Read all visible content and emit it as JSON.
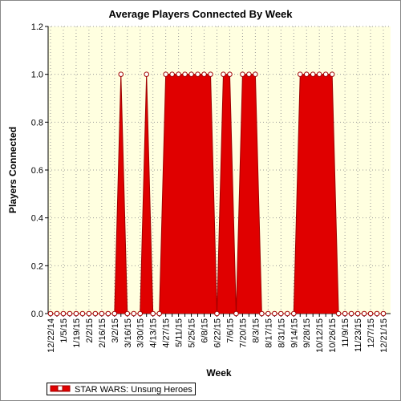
{
  "chart_data": {
    "type": "area",
    "title": "Average Players Connected By Week",
    "x_label": "Week",
    "y_label": "Players Connected",
    "categories": [
      "12/22/14",
      null,
      "1/5/15",
      null,
      "1/19/15",
      null,
      "2/2/15",
      null,
      "2/16/15",
      null,
      "3/2/15",
      null,
      "3/16/15",
      null,
      "3/30/15",
      null,
      "4/13/15",
      null,
      "4/27/15",
      null,
      "5/11/15",
      null,
      "5/25/15",
      null,
      "6/8/15",
      null,
      "6/22/15",
      null,
      "7/6/15",
      null,
      "7/20/15",
      null,
      "8/3/15",
      null,
      "8/17/15",
      null,
      "8/31/15",
      null,
      "9/14/15",
      null,
      "9/28/15",
      null,
      "10/12/15",
      null,
      "10/26/15",
      null,
      "11/9/15",
      null,
      "11/23/15",
      null,
      "12/7/15",
      null,
      "12/21/15"
    ],
    "series": [
      {
        "name": "STAR WARS: Unsung Heroes",
        "color": "#e00000",
        "line_color": "#a00000",
        "values": [
          0,
          0,
          0,
          0,
          0,
          0,
          0,
          0,
          0,
          0,
          0,
          1,
          0,
          0,
          0,
          1,
          0,
          0,
          1,
          1,
          1,
          1,
          1,
          1,
          1,
          1,
          0,
          1,
          1,
          0,
          1,
          1,
          1,
          0,
          0,
          0,
          0,
          0,
          0,
          1,
          1,
          1,
          1,
          1,
          1,
          0,
          0,
          0,
          0,
          0,
          0,
          0,
          0
        ]
      }
    ],
    "ylim": [
      0,
      1.2
    ],
    "yticks": [
      {
        "value": 0,
        "label": "0.0"
      },
      {
        "value": 0.2,
        "label": "0.2"
      },
      {
        "value": 0.4,
        "label": "0.4"
      },
      {
        "value": 0.6,
        "label": "0.6"
      },
      {
        "value": 0.8,
        "label": "0.8"
      },
      {
        "value": 1,
        "label": "1.0"
      },
      {
        "value": 1.2,
        "label": "1.2"
      }
    ],
    "grid": true,
    "legend": "bottom-left"
  }
}
